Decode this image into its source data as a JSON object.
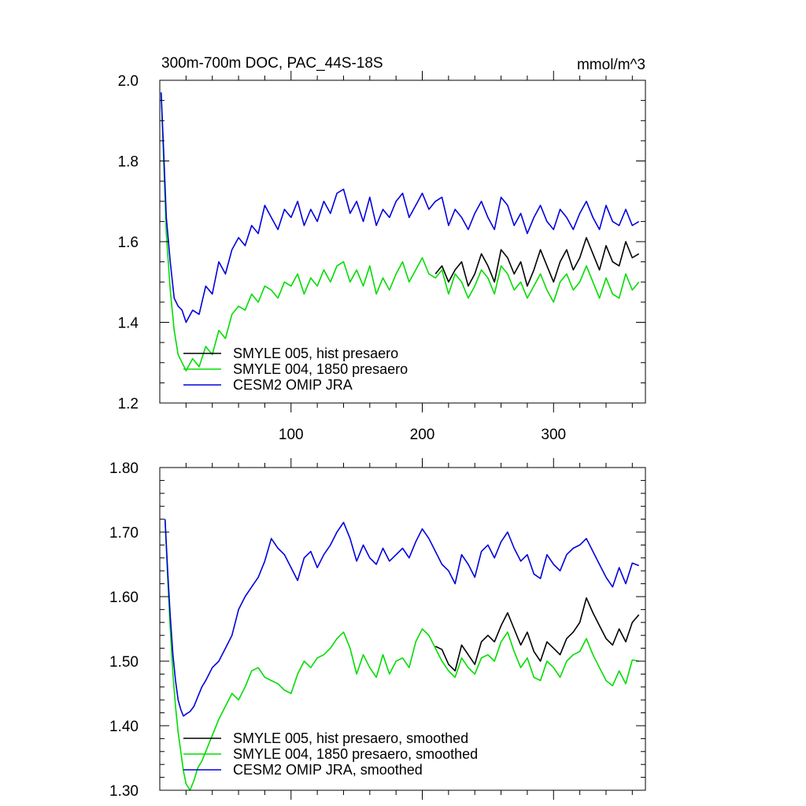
{
  "chart_data": [
    {
      "type": "line",
      "title": "300m-700m DOC, PAC_44S-18S",
      "units": "mmol/m^3",
      "xlim": [
        0,
        370
      ],
      "ylim": [
        1.2,
        2.0
      ],
      "x_ticks": [
        100,
        200,
        300
      ],
      "x_tick_labels": [
        "100",
        "200",
        "300"
      ],
      "y_ticks": [
        1.2,
        1.4,
        1.6,
        1.8,
        2.0
      ],
      "y_tick_labels": [
        "1.2",
        "1.4",
        "1.6",
        "1.8",
        "2.0"
      ],
      "grid": false,
      "legend_position": "bottom-left",
      "series": [
        {
          "name": "SMYLE 005, hist presaero",
          "color": "#000000",
          "x": [
            210,
            215,
            220,
            225,
            230,
            235,
            240,
            245,
            250,
            255,
            260,
            265,
            270,
            275,
            280,
            285,
            290,
            295,
            300,
            305,
            310,
            315,
            320,
            325,
            330,
            335,
            340,
            345,
            350,
            355,
            360,
            365
          ],
          "y": [
            1.52,
            1.54,
            1.5,
            1.53,
            1.55,
            1.49,
            1.52,
            1.57,
            1.54,
            1.5,
            1.58,
            1.56,
            1.52,
            1.55,
            1.49,
            1.53,
            1.58,
            1.54,
            1.5,
            1.55,
            1.58,
            1.53,
            1.56,
            1.61,
            1.57,
            1.53,
            1.59,
            1.55,
            1.54,
            1.6,
            1.56,
            1.57
          ]
        },
        {
          "name": "SMYLE 004, 1850 presaero",
          "color": "#00dd00",
          "x": [
            1,
            3,
            5,
            8,
            11,
            14,
            17,
            20,
            25,
            30,
            35,
            40,
            45,
            50,
            55,
            60,
            65,
            70,
            75,
            80,
            85,
            90,
            95,
            100,
            105,
            110,
            115,
            120,
            125,
            130,
            135,
            140,
            145,
            150,
            155,
            160,
            165,
            170,
            175,
            180,
            185,
            190,
            195,
            200,
            205,
            210,
            215,
            220,
            225,
            230,
            235,
            240,
            245,
            250,
            255,
            260,
            265,
            270,
            275,
            280,
            285,
            290,
            295,
            300,
            305,
            310,
            315,
            320,
            325,
            330,
            335,
            340,
            345,
            350,
            355,
            360,
            365
          ],
          "y": [
            1.97,
            1.8,
            1.62,
            1.48,
            1.38,
            1.32,
            1.3,
            1.28,
            1.31,
            1.29,
            1.34,
            1.32,
            1.38,
            1.36,
            1.42,
            1.44,
            1.43,
            1.47,
            1.45,
            1.49,
            1.48,
            1.46,
            1.5,
            1.49,
            1.52,
            1.47,
            1.51,
            1.49,
            1.53,
            1.5,
            1.54,
            1.55,
            1.5,
            1.53,
            1.49,
            1.54,
            1.47,
            1.51,
            1.48,
            1.52,
            1.55,
            1.5,
            1.53,
            1.56,
            1.52,
            1.51,
            1.53,
            1.47,
            1.52,
            1.5,
            1.46,
            1.49,
            1.53,
            1.51,
            1.47,
            1.54,
            1.52,
            1.48,
            1.5,
            1.46,
            1.49,
            1.52,
            1.48,
            1.45,
            1.5,
            1.52,
            1.48,
            1.5,
            1.54,
            1.5,
            1.46,
            1.51,
            1.47,
            1.46,
            1.52,
            1.48,
            1.5
          ]
        },
        {
          "name": "CESM2 OMIP JRA",
          "color": "#0000dd",
          "x": [
            1,
            3,
            5,
            8,
            11,
            14,
            17,
            20,
            25,
            30,
            35,
            40,
            45,
            50,
            55,
            60,
            65,
            70,
            75,
            80,
            85,
            90,
            95,
            100,
            105,
            110,
            115,
            120,
            125,
            130,
            135,
            140,
            145,
            150,
            155,
            160,
            165,
            170,
            175,
            180,
            185,
            190,
            195,
            200,
            205,
            210,
            215,
            220,
            225,
            230,
            235,
            240,
            245,
            250,
            255,
            260,
            265,
            270,
            275,
            280,
            285,
            290,
            295,
            300,
            305,
            310,
            315,
            320,
            325,
            330,
            335,
            340,
            345,
            350,
            355,
            360,
            365
          ],
          "y": [
            1.97,
            1.82,
            1.66,
            1.55,
            1.46,
            1.44,
            1.43,
            1.4,
            1.43,
            1.42,
            1.49,
            1.47,
            1.55,
            1.52,
            1.58,
            1.61,
            1.59,
            1.64,
            1.62,
            1.69,
            1.66,
            1.63,
            1.68,
            1.66,
            1.7,
            1.64,
            1.68,
            1.65,
            1.7,
            1.67,
            1.72,
            1.73,
            1.67,
            1.7,
            1.65,
            1.71,
            1.64,
            1.68,
            1.66,
            1.7,
            1.72,
            1.66,
            1.69,
            1.72,
            1.68,
            1.7,
            1.71,
            1.64,
            1.68,
            1.66,
            1.63,
            1.67,
            1.7,
            1.66,
            1.63,
            1.71,
            1.69,
            1.64,
            1.67,
            1.62,
            1.66,
            1.69,
            1.65,
            1.63,
            1.68,
            1.66,
            1.63,
            1.67,
            1.7,
            1.66,
            1.63,
            1.69,
            1.65,
            1.64,
            1.68,
            1.64,
            1.65
          ]
        }
      ]
    },
    {
      "type": "line",
      "title": "",
      "xlim": [
        0,
        370
      ],
      "ylim": [
        1.3,
        1.8
      ],
      "x_ticks": [
        100,
        200,
        300
      ],
      "y_ticks": [
        1.3,
        1.4,
        1.5,
        1.6,
        1.7,
        1.8
      ],
      "y_tick_labels": [
        "1.30",
        "1.40",
        "1.50",
        "1.60",
        "1.70",
        "1.80"
      ],
      "grid": false,
      "legend_position": "bottom-left",
      "series": [
        {
          "name": "SMYLE 005, hist presaero, smoothed",
          "color": "#000000",
          "x": [
            210,
            215,
            220,
            225,
            230,
            235,
            240,
            245,
            250,
            255,
            260,
            265,
            270,
            275,
            280,
            285,
            290,
            295,
            300,
            305,
            310,
            315,
            320,
            325,
            330,
            335,
            340,
            345,
            350,
            355,
            360,
            365
          ],
          "y": [
            1.523,
            1.518,
            1.495,
            1.485,
            1.525,
            1.51,
            1.495,
            1.53,
            1.54,
            1.53,
            1.555,
            1.575,
            1.55,
            1.525,
            1.545,
            1.515,
            1.5,
            1.53,
            1.52,
            1.51,
            1.535,
            1.545,
            1.56,
            1.598,
            1.575,
            1.555,
            1.535,
            1.525,
            1.55,
            1.53,
            1.56,
            1.572
          ]
        },
        {
          "name": "SMYLE 004, 1850 presaero, smoothed",
          "color": "#00dd00",
          "x": [
            4,
            6,
            8,
            10,
            12,
            14,
            16,
            18,
            20,
            23,
            26,
            29,
            32,
            35,
            40,
            45,
            50,
            55,
            60,
            65,
            70,
            75,
            80,
            85,
            90,
            95,
            100,
            105,
            110,
            115,
            120,
            125,
            130,
            135,
            140,
            145,
            150,
            155,
            160,
            165,
            170,
            175,
            180,
            185,
            190,
            195,
            200,
            205,
            210,
            215,
            220,
            225,
            230,
            235,
            240,
            245,
            250,
            255,
            260,
            265,
            270,
            275,
            280,
            285,
            290,
            295,
            300,
            305,
            310,
            315,
            320,
            325,
            330,
            335,
            340,
            345,
            350,
            355,
            360,
            365
          ],
          "y": [
            1.72,
            1.63,
            1.55,
            1.48,
            1.43,
            1.39,
            1.36,
            1.33,
            1.31,
            1.3,
            1.315,
            1.335,
            1.345,
            1.36,
            1.385,
            1.41,
            1.43,
            1.45,
            1.44,
            1.46,
            1.485,
            1.49,
            1.475,
            1.47,
            1.465,
            1.455,
            1.45,
            1.48,
            1.5,
            1.49,
            1.505,
            1.51,
            1.52,
            1.535,
            1.545,
            1.52,
            1.48,
            1.51,
            1.49,
            1.475,
            1.51,
            1.48,
            1.5,
            1.505,
            1.49,
            1.53,
            1.55,
            1.54,
            1.52,
            1.5,
            1.485,
            1.475,
            1.505,
            1.49,
            1.48,
            1.505,
            1.51,
            1.5,
            1.53,
            1.545,
            1.515,
            1.49,
            1.505,
            1.475,
            1.47,
            1.5,
            1.49,
            1.475,
            1.5,
            1.51,
            1.515,
            1.535,
            1.51,
            1.49,
            1.47,
            1.462,
            1.485,
            1.465,
            1.502,
            1.5
          ]
        },
        {
          "name": "CESM2 OMIP JRA, smoothed",
          "color": "#0000dd",
          "x": [
            4,
            6,
            8,
            10,
            12,
            14,
            16,
            18,
            20,
            23,
            26,
            29,
            32,
            35,
            40,
            45,
            50,
            55,
            60,
            65,
            70,
            75,
            80,
            85,
            90,
            95,
            100,
            105,
            110,
            115,
            120,
            125,
            130,
            135,
            140,
            145,
            150,
            155,
            160,
            165,
            170,
            175,
            180,
            185,
            190,
            195,
            200,
            205,
            210,
            215,
            220,
            225,
            230,
            235,
            240,
            245,
            250,
            255,
            260,
            265,
            270,
            275,
            280,
            285,
            290,
            295,
            300,
            305,
            310,
            315,
            320,
            325,
            330,
            335,
            340,
            345,
            350,
            355,
            360,
            365
          ],
          "y": [
            1.72,
            1.64,
            1.57,
            1.51,
            1.47,
            1.44,
            1.425,
            1.415,
            1.418,
            1.422,
            1.43,
            1.445,
            1.46,
            1.47,
            1.49,
            1.5,
            1.52,
            1.54,
            1.58,
            1.6,
            1.615,
            1.63,
            1.655,
            1.69,
            1.675,
            1.665,
            1.645,
            1.625,
            1.66,
            1.67,
            1.645,
            1.665,
            1.68,
            1.7,
            1.715,
            1.69,
            1.655,
            1.68,
            1.66,
            1.65,
            1.675,
            1.655,
            1.665,
            1.675,
            1.66,
            1.685,
            1.705,
            1.69,
            1.67,
            1.65,
            1.64,
            1.62,
            1.665,
            1.65,
            1.63,
            1.67,
            1.68,
            1.66,
            1.685,
            1.7,
            1.675,
            1.655,
            1.665,
            1.635,
            1.628,
            1.665,
            1.65,
            1.64,
            1.665,
            1.675,
            1.68,
            1.69,
            1.67,
            1.65,
            1.63,
            1.615,
            1.645,
            1.62,
            1.652,
            1.648
          ]
        }
      ]
    }
  ]
}
